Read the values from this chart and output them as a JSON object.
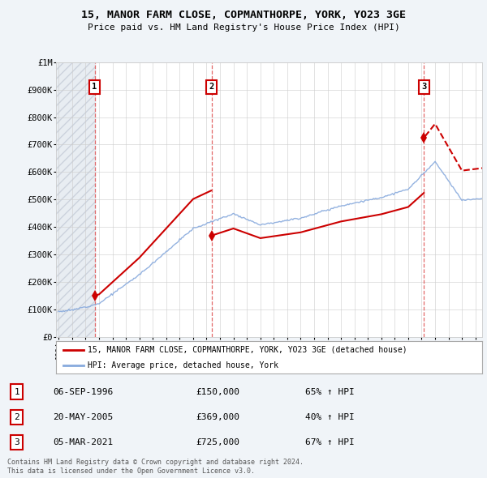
{
  "title": "15, MANOR FARM CLOSE, COPMANTHORPE, YORK, YO23 3GE",
  "subtitle": "Price paid vs. HM Land Registry's House Price Index (HPI)",
  "property_label": "15, MANOR FARM CLOSE, COPMANTHORPE, YORK, YO23 3GE (detached house)",
  "hpi_label": "HPI: Average price, detached house, York",
  "transactions": [
    {
      "num": 1,
      "date": "06-SEP-1996",
      "price": 150000,
      "pct": "65%",
      "dir": "↑",
      "year": 1996.67
    },
    {
      "num": 2,
      "date": "20-MAY-2005",
      "price": 369000,
      "pct": "40%",
      "dir": "↑",
      "year": 2005.37
    },
    {
      "num": 3,
      "date": "05-MAR-2021",
      "price": 725000,
      "pct": "67%",
      "dir": "↑",
      "year": 2021.17
    }
  ],
  "footer1": "Contains HM Land Registry data © Crown copyright and database right 2024.",
  "footer2": "This data is licensed under the Open Government Licence v3.0.",
  "property_color": "#cc0000",
  "hpi_color": "#88aadd",
  "background_color": "#f0f4f8",
  "plot_bg_color": "#ffffff",
  "ylim_max": 1000000,
  "xlim_start": 1993.8,
  "xlim_end": 2025.5,
  "hpi_base_1994": 95000,
  "hpi_base_2025": 500000
}
